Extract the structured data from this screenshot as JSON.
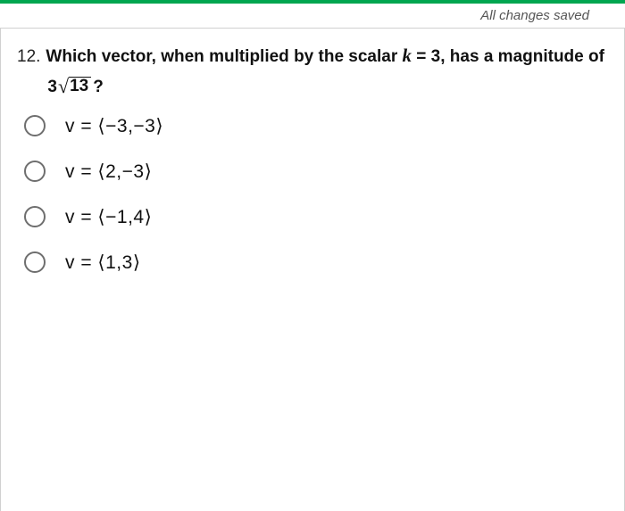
{
  "accent_color": "#00a650",
  "save_status": "All changes saved",
  "question": {
    "number": "12.",
    "prefix": "Which vector, when multiplied by the scalar ",
    "scalar_var": "k",
    "scalar_eq": " = 3",
    "mid": ", has a magnitude of ",
    "rad_coef": "3",
    "radicand": "13",
    "suffix": "?"
  },
  "options": [
    {
      "text": "v = ⟨−3,−3⟩"
    },
    {
      "text": "v = ⟨2,−3⟩"
    },
    {
      "text": "v = ⟨−1,4⟩"
    },
    {
      "text": "v = ⟨1,3⟩"
    }
  ]
}
